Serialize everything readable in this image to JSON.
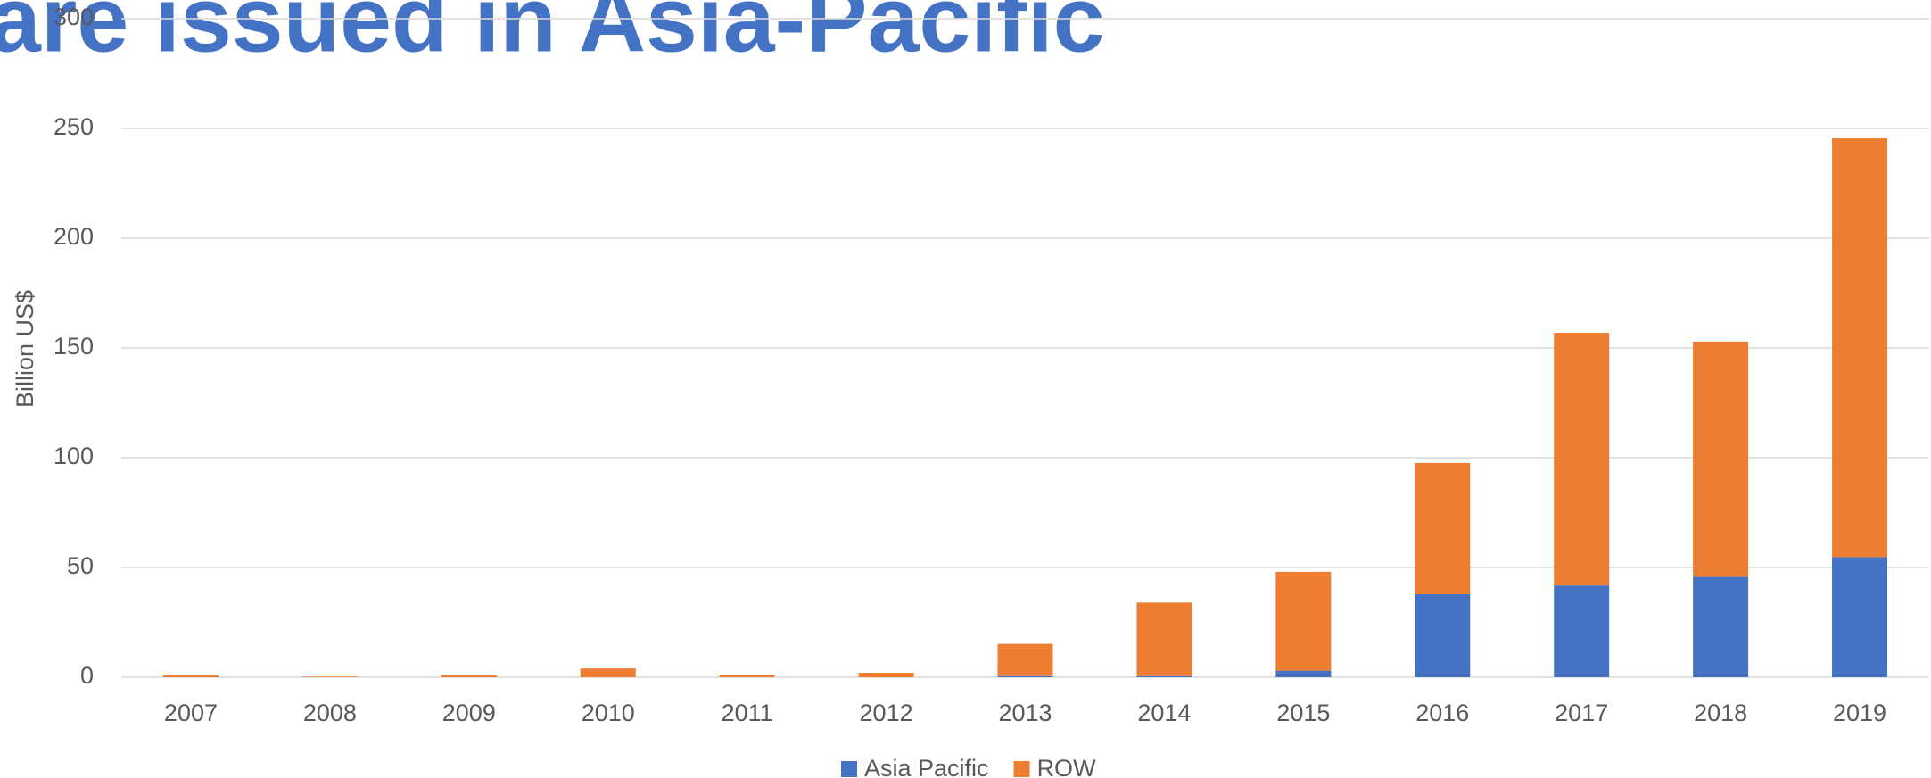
{
  "chart_data": {
    "type": "stacked_bar",
    "title": "are issued in Asia-Pacific",
    "y_label": "Billion US$",
    "categories": [
      "2007",
      "2008",
      "2009",
      "2010",
      "2011",
      "2012",
      "2013",
      "2014",
      "2015",
      "2016",
      "2017",
      "2018",
      "2019"
    ],
    "series": [
      {
        "name": "Asia Pacific",
        "color": "#4472c4",
        "values": [
          0,
          0,
          0,
          0,
          0,
          0,
          0.5,
          0.5,
          3,
          37.8,
          41.8,
          45.7,
          54.7
        ]
      },
      {
        "name": "ROW",
        "color": "#ed7d31",
        "values": [
          0.8,
          0.3,
          0.8,
          4,
          1,
          2,
          14.7,
          33.5,
          45,
          59.8,
          115.1,
          107.2,
          190.8
        ]
      }
    ],
    "ylim": [
      0,
      300
    ],
    "yticks": [
      0,
      50,
      100,
      150,
      200,
      250,
      300
    ],
    "grid": true,
    "legend": "bottom"
  }
}
